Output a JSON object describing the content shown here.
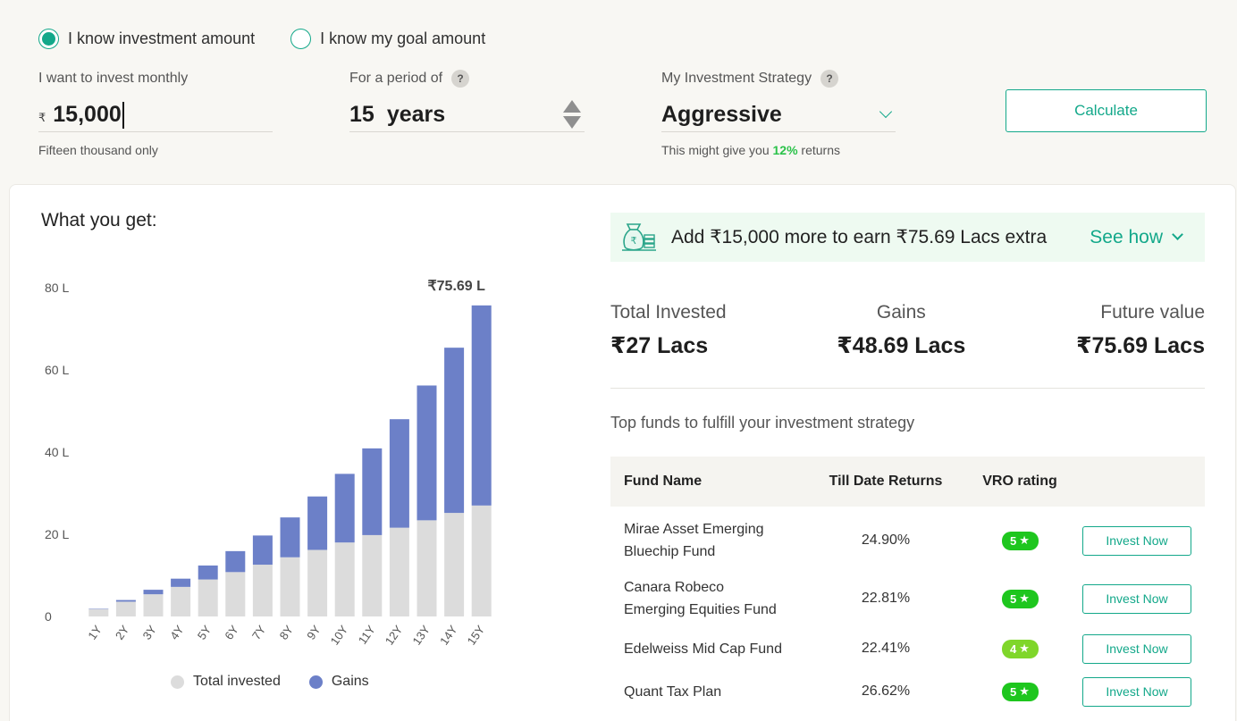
{
  "mode": {
    "option_amount": "I know investment amount",
    "option_goal": "I know my goal amount",
    "selected": "amount"
  },
  "monthly": {
    "label": "I want to invest monthly",
    "currency": "₹",
    "value": "15,000",
    "hint": "Fifteen thousand only"
  },
  "period": {
    "label": "For a period of",
    "help": "?",
    "value": "15",
    "unit": "years"
  },
  "strategy": {
    "label": "My Investment Strategy",
    "help": "?",
    "value": "Aggressive",
    "hint_prefix": "This might give you",
    "hint_pct": "12%",
    "hint_suffix": "returns"
  },
  "calculate_label": "Calculate",
  "result": {
    "title": "What you get:",
    "promo_text": "Add ₹15,000 more to earn ₹75.69 Lacs extra",
    "see_how": "See how",
    "total_invested_label": "Total Invested",
    "total_invested_value": "₹27 Lacs",
    "gains_label": "Gains",
    "gains_value": "₹48.69 Lacs",
    "future_label": "Future value",
    "future_value": "₹75.69 Lacs",
    "top_funds_title": "Top funds to fulfill your investment strategy"
  },
  "colors": {
    "accent": "#13a88a",
    "invested": "#dcdcdc",
    "gains": "#6c80c8",
    "rating_5": "#1ec61e",
    "rating_4": "#7fd62a"
  },
  "chart_data": {
    "type": "bar",
    "stacked": true,
    "categories": [
      "1Y",
      "2Y",
      "3Y",
      "4Y",
      "5Y",
      "6Y",
      "7Y",
      "8Y",
      "9Y",
      "10Y",
      "11Y",
      "12Y",
      "13Y",
      "14Y",
      "15Y"
    ],
    "series": [
      {
        "name": "Total invested",
        "values": [
          1.8,
          3.6,
          5.4,
          7.2,
          9.0,
          10.8,
          12.6,
          14.4,
          16.2,
          18.0,
          19.8,
          21.6,
          23.4,
          25.2,
          27.0
        ]
      },
      {
        "name": "Gains",
        "values": [
          0.1,
          0.4,
          1.1,
          2.0,
          3.4,
          5.1,
          7.1,
          9.7,
          13.0,
          16.7,
          21.1,
          26.4,
          32.8,
          40.2,
          48.69
        ]
      }
    ],
    "yticks": [
      "0",
      "20 L",
      "40 L",
      "60 L",
      "80 L"
    ],
    "ylim": [
      0,
      80
    ],
    "top_label": "₹75.69 L",
    "grid": false,
    "legend_position": "bottom"
  },
  "table": {
    "headers": [
      "Fund Name",
      "Till Date Returns",
      "VRO rating",
      ""
    ],
    "rows": [
      {
        "name": "Mirae Asset Emerging Bluechip Fund",
        "returns": "24.90%",
        "rating": "5",
        "action": "Invest Now"
      },
      {
        "name": "Canara Robeco Emerging Equities Fund",
        "returns": "22.81%",
        "rating": "5",
        "action": "Invest Now"
      },
      {
        "name": "Edelweiss Mid Cap Fund",
        "returns": "22.41%",
        "rating": "4",
        "action": "Invest Now"
      },
      {
        "name": "Quant Tax Plan",
        "returns": "26.62%",
        "rating": "5",
        "action": "Invest Now"
      }
    ]
  }
}
